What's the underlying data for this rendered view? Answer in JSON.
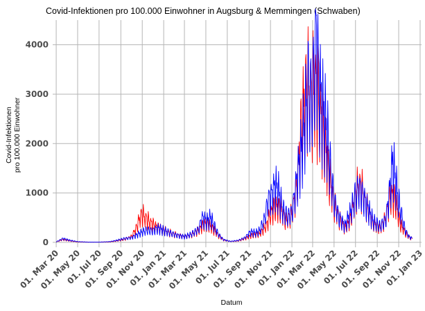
{
  "chart_data": {
    "type": "line",
    "title": "Covid-Infektionen pro 100.000 Einwohner in Augsburg & Memmingen (Schwaben)",
    "xlabel": "Datum",
    "ylabel": [
      "Covid-Infektionen",
      "pro 100.000 Einwohner"
    ],
    "ylim": [
      -100,
      4500
    ],
    "xlim": [
      "2020-02-20",
      "2023-01-05"
    ],
    "y_ticks": [
      0,
      1000,
      2000,
      3000,
      4000
    ],
    "x_ticks": [
      {
        "date": "2020-03-01",
        "label": "01. Mar 20"
      },
      {
        "date": "2020-05-01",
        "label": "01. May 20"
      },
      {
        "date": "2020-07-01",
        "label": "01. Jul 20"
      },
      {
        "date": "2020-09-01",
        "label": "01. Sep 20"
      },
      {
        "date": "2020-11-01",
        "label": "01. Nov 20"
      },
      {
        "date": "2021-01-01",
        "label": "01. Jan 21"
      },
      {
        "date": "2021-03-01",
        "label": "01. Mar 21"
      },
      {
        "date": "2021-05-01",
        "label": "01. May 21"
      },
      {
        "date": "2021-07-01",
        "label": "01. Jul 21"
      },
      {
        "date": "2021-09-01",
        "label": "01. Sep 21"
      },
      {
        "date": "2021-11-01",
        "label": "01. Nov 21"
      },
      {
        "date": "2022-01-01",
        "label": "01. Jan 22"
      },
      {
        "date": "2022-03-01",
        "label": "01. Mar 22"
      },
      {
        "date": "2022-05-01",
        "label": "01. May 22"
      },
      {
        "date": "2022-07-01",
        "label": "01. Jul 22"
      },
      {
        "date": "2022-09-01",
        "label": "01. Sep 22"
      },
      {
        "date": "2022-11-01",
        "label": "01. Nov 22"
      },
      {
        "date": "2023-01-01",
        "label": "01. Jan 23"
      }
    ],
    "grid": true,
    "legend": "none",
    "series": [
      {
        "color": "#ff0000",
        "points": [
          [
            "2020-03-01",
            10
          ],
          [
            "2020-03-20",
            60
          ],
          [
            "2020-04-10",
            30
          ],
          [
            "2020-05-01",
            10
          ],
          [
            "2020-06-01",
            5
          ],
          [
            "2020-07-01",
            5
          ],
          [
            "2020-08-01",
            10
          ],
          [
            "2020-08-20",
            30
          ],
          [
            "2020-09-10",
            60
          ],
          [
            "2020-10-01",
            120
          ],
          [
            "2020-10-15",
            300
          ],
          [
            "2020-10-25",
            520
          ],
          [
            "2020-11-01",
            600
          ],
          [
            "2020-11-10",
            520
          ],
          [
            "2020-11-20",
            450
          ],
          [
            "2020-12-01",
            380
          ],
          [
            "2020-12-15",
            320
          ],
          [
            "2021-01-01",
            260
          ],
          [
            "2021-01-20",
            200
          ],
          [
            "2021-02-10",
            150
          ],
          [
            "2021-03-01",
            120
          ],
          [
            "2021-03-20",
            160
          ],
          [
            "2021-04-10",
            250
          ],
          [
            "2021-04-25",
            380
          ],
          [
            "2021-05-05",
            400
          ],
          [
            "2021-05-20",
            300
          ],
          [
            "2021-06-05",
            150
          ],
          [
            "2021-06-20",
            50
          ],
          [
            "2021-07-10",
            20
          ],
          [
            "2021-08-01",
            30
          ],
          [
            "2021-08-20",
            80
          ],
          [
            "2021-09-10",
            150
          ],
          [
            "2021-10-01",
            180
          ],
          [
            "2021-10-20",
            350
          ],
          [
            "2021-11-01",
            600
          ],
          [
            "2021-11-15",
            750
          ],
          [
            "2021-12-01",
            700
          ],
          [
            "2021-12-15",
            450
          ],
          [
            "2022-01-01",
            600
          ],
          [
            "2022-01-15",
            1200
          ],
          [
            "2022-01-25",
            2200
          ],
          [
            "2022-02-05",
            3000
          ],
          [
            "2022-02-15",
            3300
          ],
          [
            "2022-02-25",
            3100
          ],
          [
            "2022-03-10",
            3300
          ],
          [
            "2022-03-20",
            2800
          ],
          [
            "2022-04-01",
            2300
          ],
          [
            "2022-04-15",
            1500
          ],
          [
            "2022-05-01",
            800
          ],
          [
            "2022-05-15",
            500
          ],
          [
            "2022-06-01",
            300
          ],
          [
            "2022-06-15",
            450
          ],
          [
            "2022-07-01",
            1000
          ],
          [
            "2022-07-10",
            1250
          ],
          [
            "2022-07-20",
            1100
          ],
          [
            "2022-08-01",
            800
          ],
          [
            "2022-08-20",
            400
          ],
          [
            "2022-09-10",
            300
          ],
          [
            "2022-09-25",
            500
          ],
          [
            "2022-10-05",
            900
          ],
          [
            "2022-10-15",
            1000
          ],
          [
            "2022-10-25",
            800
          ],
          [
            "2022-11-05",
            400
          ],
          [
            "2022-11-20",
            200
          ],
          [
            "2022-12-01",
            100
          ],
          [
            "2022-12-10",
            80
          ]
        ]
      },
      {
        "color": "#0000ff",
        "points": [
          [
            "2020-03-01",
            10
          ],
          [
            "2020-03-20",
            80
          ],
          [
            "2020-04-10",
            40
          ],
          [
            "2020-05-01",
            15
          ],
          [
            "2020-06-01",
            5
          ],
          [
            "2020-07-01",
            5
          ],
          [
            "2020-08-01",
            15
          ],
          [
            "2020-08-20",
            40
          ],
          [
            "2020-09-10",
            80
          ],
          [
            "2020-10-01",
            100
          ],
          [
            "2020-10-15",
            150
          ],
          [
            "2020-11-01",
            220
          ],
          [
            "2020-11-15",
            260
          ],
          [
            "2020-12-01",
            250
          ],
          [
            "2020-12-15",
            300
          ],
          [
            "2021-01-01",
            250
          ],
          [
            "2021-01-20",
            200
          ],
          [
            "2021-02-10",
            150
          ],
          [
            "2021-03-01",
            120
          ],
          [
            "2021-03-20",
            170
          ],
          [
            "2021-04-10",
            280
          ],
          [
            "2021-04-20",
            520
          ],
          [
            "2021-05-05",
            450
          ],
          [
            "2021-05-15",
            520
          ],
          [
            "2021-05-25",
            350
          ],
          [
            "2021-06-05",
            180
          ],
          [
            "2021-06-20",
            60
          ],
          [
            "2021-07-10",
            20
          ],
          [
            "2021-08-01",
            40
          ],
          [
            "2021-08-20",
            100
          ],
          [
            "2021-09-05",
            220
          ],
          [
            "2021-09-20",
            200
          ],
          [
            "2021-10-01",
            250
          ],
          [
            "2021-10-15",
            500
          ],
          [
            "2021-10-25",
            900
          ],
          [
            "2021-11-05",
            1000
          ],
          [
            "2021-11-15",
            1200
          ],
          [
            "2021-11-25",
            1050
          ],
          [
            "2021-12-05",
            700
          ],
          [
            "2021-12-20",
            550
          ],
          [
            "2022-01-01",
            650
          ],
          [
            "2022-01-15",
            1300
          ],
          [
            "2022-01-25",
            1800
          ],
          [
            "2022-02-05",
            2400
          ],
          [
            "2022-02-15",
            3300
          ],
          [
            "2022-02-25",
            3000
          ],
          [
            "2022-03-05",
            3700
          ],
          [
            "2022-03-12",
            4350
          ],
          [
            "2022-03-20",
            3300
          ],
          [
            "2022-04-01",
            2700
          ],
          [
            "2022-04-10",
            2400
          ],
          [
            "2022-04-20",
            1600
          ],
          [
            "2022-05-01",
            900
          ],
          [
            "2022-05-15",
            550
          ],
          [
            "2022-06-01",
            350
          ],
          [
            "2022-06-15",
            600
          ],
          [
            "2022-07-01",
            1000
          ],
          [
            "2022-07-10",
            1150
          ],
          [
            "2022-07-20",
            1050
          ],
          [
            "2022-08-01",
            800
          ],
          [
            "2022-08-20",
            450
          ],
          [
            "2022-09-10",
            350
          ],
          [
            "2022-09-25",
            500
          ],
          [
            "2022-10-05",
            1000
          ],
          [
            "2022-10-15",
            1700
          ],
          [
            "2022-10-25",
            1200
          ],
          [
            "2022-11-05",
            700
          ],
          [
            "2022-11-20",
            250
          ],
          [
            "2022-12-01",
            120
          ],
          [
            "2022-12-10",
            80
          ]
        ]
      }
    ]
  }
}
